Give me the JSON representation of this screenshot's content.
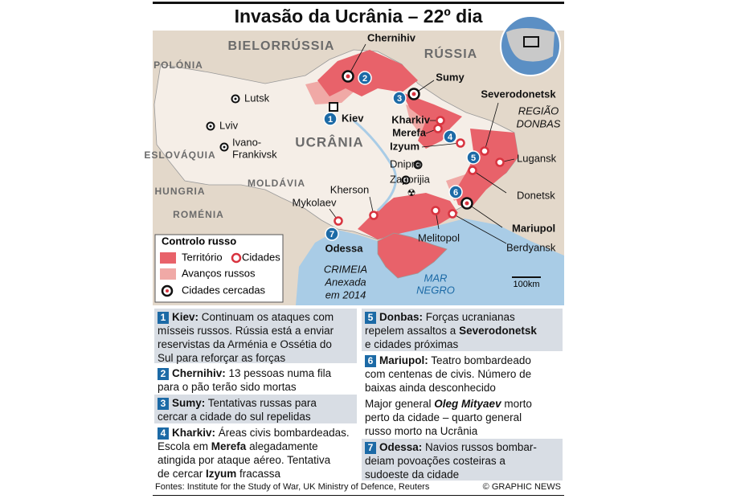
{
  "title": "Invasão da Ucrânia – 22º dia",
  "map": {
    "countries": [
      "BIELORRÚSSIA",
      "RÚSSIA",
      "POLÓNIA",
      "ESLOVÁQUIA",
      "HUNGRIA",
      "MOLDÁVIA",
      "ROMÉNIA",
      "UCRÂNIA"
    ],
    "cities": [
      "Chernihiv",
      "Kiev",
      "Sumy",
      "Kharkiv",
      "Merefa",
      "Izyum",
      "Severodonetsk",
      "Lugansk",
      "Donetsk",
      "Mariupol",
      "Berdyansk",
      "Melitopol",
      "Zaporijia",
      "Dnipro",
      "Kherson",
      "Mykolaev",
      "Odessa",
      "Lutsk",
      "Lviv",
      "Ivano-",
      "Frankivsk"
    ],
    "regions": {
      "donbas": [
        "REGIÃO",
        "DONBAS"
      ],
      "crimea": [
        "CRIMEIA",
        "Anexada",
        "em 2014"
      ],
      "sea": [
        "MAR",
        "NEGRO"
      ]
    },
    "markers": [
      "1",
      "2",
      "3",
      "4",
      "5",
      "6",
      "7"
    ],
    "scale": "100km"
  },
  "legend": {
    "title": "Controlo russo",
    "items": [
      "Território",
      "Cidades",
      "Avanços russos",
      "Cidades cercadas"
    ]
  },
  "panels": [
    {
      "number": "1",
      "lines": [
        [
          "Kiev:",
          " Continuam os ataques com"
        ],
        [
          "mísseis russos. Rússia está a enviar"
        ],
        [
          "reservistas da Arménia e Ossétia do"
        ],
        [
          "Sul para reforçar as forças"
        ]
      ]
    },
    {
      "number": "2",
      "lines": [
        [
          "Chernihiv:",
          " 13 pessoas numa fila"
        ],
        [
          "para o pão terão sido mortas"
        ]
      ]
    },
    {
      "number": "3",
      "lines": [
        [
          "Sumy:",
          " Tentativas russas para"
        ],
        [
          "cercar a cidade do sul repelidas"
        ]
      ]
    },
    {
      "number": "4",
      "lines": [
        [
          "Kharkiv:",
          " Áreas civis bombardeadas."
        ],
        [
          "Escola em ",
          "Merefa",
          " alegadamente"
        ],
        [
          "atingida por ataque aéreo. Tentativa"
        ],
        [
          "de cercar ",
          "Izyum",
          " fracassa"
        ]
      ]
    },
    {
      "number": "5",
      "lines": [
        [
          "Donbas:",
          " Forças ucranianas"
        ],
        [
          "repelem assaltos a ",
          "Severodonetsk"
        ],
        [
          "e cidades próximas"
        ]
      ]
    },
    {
      "number": "6",
      "lines": [
        [
          "Mariupol:",
          " Teatro bombardeado"
        ],
        [
          "com centenas de civis. Número de"
        ],
        [
          "baixas ainda desconhecido"
        ],
        [
          "Major general ",
          "Oleg Mityaev",
          " morto"
        ],
        [
          "perto da cidade – quarto general"
        ],
        [
          "russo morto na Ucrânia"
        ]
      ]
    },
    {
      "number": "7",
      "lines": [
        [
          "Odessa:",
          " Navios russos bombar-"
        ],
        [
          "deiam povoações costeiras a"
        ],
        [
          "sudoeste da cidade"
        ]
      ]
    }
  ],
  "footer": {
    "sources": "Fontes: Institute for the Study of War, UK Ministry of Defence, Reuters",
    "credit": "© GRAPHIC NEWS"
  }
}
